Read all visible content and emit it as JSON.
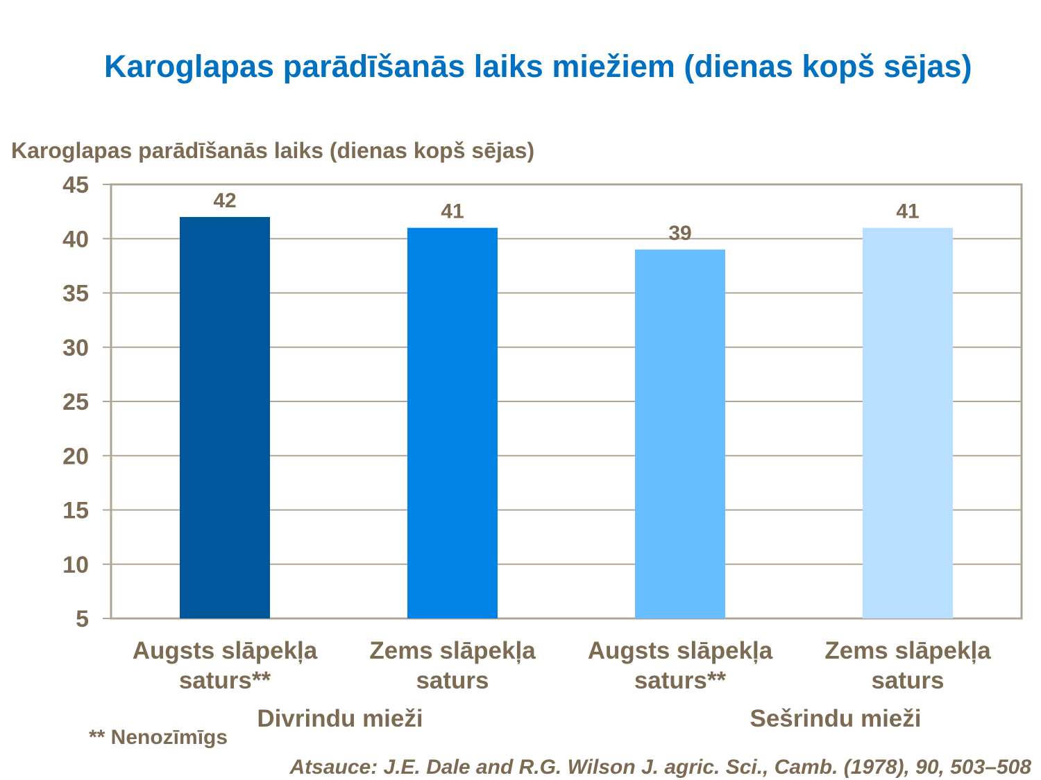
{
  "title": "Karoglapas parādīšanās laiks miežiem (dienas kopš sējas)",
  "chart_data": {
    "type": "bar",
    "title": "Karoglapas parādīšanās laiks miežiem (dienas kopš sējas)",
    "ylabel": "Karoglapas parādīšanās laiks (dienas kopš sējas)",
    "xlabel": "",
    "ylim": [
      5,
      45
    ],
    "yticks": [
      5,
      10,
      15,
      20,
      25,
      30,
      35,
      40,
      45
    ],
    "grid": true,
    "categories": [
      [
        "Augsts slāpekļa",
        "saturs**"
      ],
      [
        "Zems slāpekļa",
        "saturs"
      ],
      [
        "Augsts slāpekļa",
        "saturs**"
      ],
      [
        "Zems slāpekļa",
        "saturs"
      ]
    ],
    "groups": [
      "Divrindu mieži",
      "Sešrindu mieži"
    ],
    "values": [
      42,
      41,
      39,
      41
    ],
    "colors": [
      "#00589b",
      "#0082e6",
      "#66bdff",
      "#b8dfff"
    ]
  },
  "footnote": "** Nenozīmīgs",
  "source": "Atsauce: J.E. Dale and R.G. Wilson J. agric. Sci., Camb. (1978), 90, 503–508"
}
